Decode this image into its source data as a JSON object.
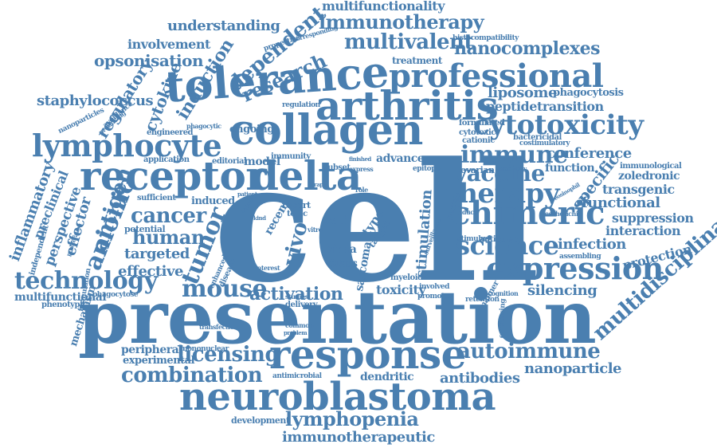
{
  "palette": {
    "word": "#4a7fb0",
    "background": "#ffffff"
  },
  "words": [
    "cell",
    "presentation",
    "collagen",
    "tolerance",
    "arthritis",
    "receptor",
    "neuroblastoma",
    "delta",
    "response",
    "lymphocyte",
    "professional",
    "expression",
    "chimeric",
    "cytotoxicity",
    "science",
    "therapy",
    "technology",
    "mouse",
    "activation",
    "vaccine",
    "immune",
    "cancer",
    "human",
    "tumor",
    "anionic",
    "antigen",
    "combination",
    "licensing",
    "autoimmune",
    "lymphopenia",
    "immunotherapeutic",
    "immunotherapy",
    "multifunctionality",
    "multivalent",
    "nanocomplexes",
    "understanding",
    "dependent",
    "research",
    "induction",
    "cytokine",
    "regulatory",
    "opsonisation",
    "involvement",
    "staphylococcus",
    "multidisciplinary",
    "inflammatory",
    "preclinical",
    "perspective",
    "effector",
    "silencing",
    "infection",
    "protection",
    "interaction",
    "suppression",
    "functional",
    "transgenic",
    "specific",
    "conference",
    "function",
    "transition",
    "peptide",
    "liposome",
    "phagocytosis",
    "nanoparticle",
    "antibodies",
    "dendritic",
    "toxicity",
    "stimulation",
    "sarcoma",
    "targeted",
    "effective",
    "peripheral",
    "experimental",
    "development",
    "mechanism",
    "multifunctional",
    "phenotypic",
    "potential",
    "induced",
    "model",
    "ongoing",
    "immunity",
    "sufficient",
    "application",
    "engineered",
    "zoledronic",
    "immunological",
    "bactericidal",
    "formulated",
    "cytotoxic",
    "cationic",
    "ovarian",
    "mononuclear",
    "antimicrobial",
    "phagocytose",
    "silencing",
    "recent",
    "type",
    "self",
    "cross",
    "future",
    "sirna",
    "target",
    "promote",
    "involved",
    "editorial",
    "subset",
    "advance",
    "epitope",
    "report",
    "topic",
    "treatment",
    "corresponding",
    "histocompatibility",
    "properties",
    "regulation",
    "antitumor",
    "assembling",
    "costimulatory",
    "escherichia",
    "delivery",
    "studies",
    "interest",
    "common",
    "problem",
    "transfection",
    "disease",
    "enhanced",
    "producing",
    "avoidance",
    "nanoparticles",
    "independent",
    "formulation",
    "proliferation",
    "myeloid",
    "retention",
    "recognition",
    "expressing",
    "manner",
    "surveillance",
    "stimulus",
    "particle",
    "induce",
    "eosinophil",
    "specificity",
    "express",
    "finished",
    "phagocytic",
    "patient",
    "rapid",
    "vitro",
    "capacity",
    "kind",
    "vivo",
    "role"
  ]
}
